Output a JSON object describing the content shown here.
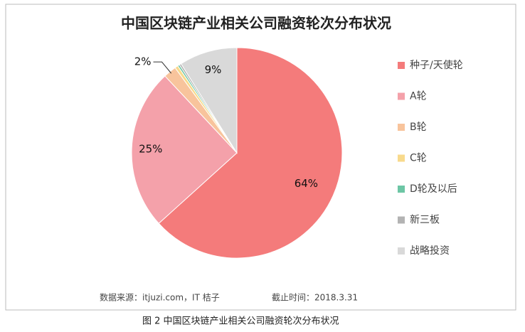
{
  "chart_data": {
    "type": "pie",
    "title": "中国区块链产业相关公司融资轮次分布状况",
    "categories": [
      "种子/天使轮",
      "A轮",
      "B轮",
      "C轮",
      "D轮及以后",
      "新三板",
      "战略投资"
    ],
    "values": [
      64,
      25,
      2,
      0.5,
      0.3,
      0.3,
      9
    ],
    "value_labels": [
      "64%",
      "25%",
      "2%",
      null,
      null,
      null,
      "9%"
    ],
    "colors": [
      "#f47b7b",
      "#f4a1aa",
      "#f8c49c",
      "#f8da8c",
      "#6dc6a5",
      "#b3b3b3",
      "#d9d9d9"
    ],
    "legend": "right",
    "source": "数据来源：itjuzi.com，IT 桔子",
    "date_note": "截止时间：2018.3.31"
  },
  "caption": "图 2    中国区块链产业相关公司融资轮次分布状况"
}
